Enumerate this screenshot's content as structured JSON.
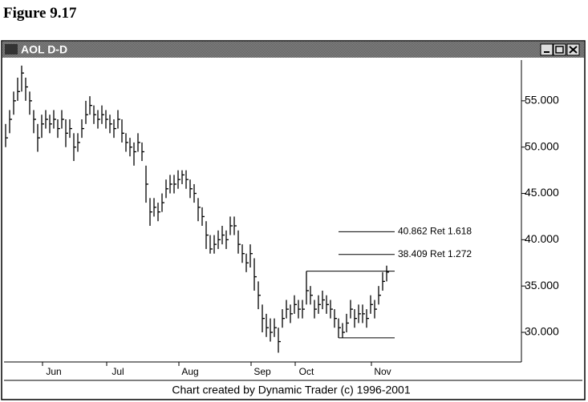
{
  "chart_data": {
    "type": "ohlc",
    "figure_label": "Figure 9.17",
    "title": "AOL D-D",
    "credit": "Chart created by Dynamic Trader (c) 1996-2001",
    "color": "#000000",
    "high": [
      52.5,
      54,
      56,
      57.5,
      58.8,
      57.5,
      56,
      54,
      52.5,
      53.5,
      54,
      53.5,
      54,
      53,
      54,
      53,
      53,
      51.5,
      51.5,
      53,
      55,
      55.5,
      54.5,
      54,
      54.5,
      54,
      53.5,
      53,
      54,
      53,
      51.5,
      51,
      50.5,
      51.5,
      50.5,
      48,
      44.5,
      44.5,
      44,
      45,
      46.5,
      47,
      47,
      47.5,
      47.5,
      47.5,
      46.5,
      46,
      44.5,
      43.5,
      42,
      40.5,
      40.5,
      41,
      41.5,
      41,
      42.5,
      42.5,
      41,
      39.5,
      38.5,
      39.5,
      38,
      35.5,
      33,
      32,
      31.5,
      31.5,
      30.5,
      32.5,
      33.5,
      33,
      34,
      33.5,
      33.5,
      36.6,
      35,
      33.5,
      34,
      34.5,
      34,
      33.5,
      32.5,
      31.5,
      31,
      32,
      33.5,
      32.5,
      33,
      33,
      32.5,
      34,
      33.5,
      35,
      36.5,
      37.2
    ],
    "low": [
      50,
      51.5,
      53.5,
      55,
      56,
      55,
      53.5,
      51.5,
      49.5,
      51,
      52,
      51.5,
      52,
      51,
      52,
      50,
      51,
      48.5,
      49.5,
      51,
      52.5,
      53.5,
      52.5,
      52,
      52.5,
      52,
      51.5,
      51,
      52,
      50.5,
      49.5,
      49,
      48,
      49.5,
      48.5,
      44,
      41.5,
      42.5,
      42,
      43,
      44.5,
      45,
      45,
      45.5,
      46,
      45.5,
      44.5,
      44,
      42,
      41.5,
      39,
      38.5,
      38.5,
      39,
      39.5,
      39,
      40.5,
      40.5,
      38.5,
      37.5,
      36.5,
      37,
      34.5,
      32.5,
      30,
      29.5,
      29,
      29.5,
      27.8,
      30.5,
      31.5,
      31,
      32,
      31.5,
      31.5,
      33,
      33,
      31.5,
      32,
      32.5,
      32,
      31.5,
      30.5,
      29.4,
      29.4,
      30,
      31.5,
      30.5,
      31,
      31,
      30.5,
      32,
      31.5,
      33,
      34.5,
      35.5
    ],
    "close": [
      51,
      53,
      55,
      56,
      58,
      56.5,
      55,
      53,
      51,
      52.5,
      53,
      52.5,
      53,
      52,
      53,
      51.5,
      52,
      50,
      50.5,
      52,
      53.5,
      54.5,
      53.5,
      53,
      53.5,
      53,
      52.5,
      52,
      53,
      51.5,
      50.5,
      50,
      49.5,
      50.5,
      49.5,
      46,
      43,
      43.5,
      43,
      44,
      45.5,
      46,
      46,
      46.5,
      47,
      46.5,
      45.5,
      45,
      43.5,
      42.5,
      40.5,
      39,
      39.5,
      40,
      40.5,
      40,
      41.5,
      41.5,
      39.5,
      38.5,
      37.5,
      38.5,
      36,
      34,
      31.5,
      30.5,
      30,
      30.5,
      29,
      31.5,
      32.5,
      32,
      33,
      32.5,
      32.5,
      34.5,
      34,
      32.5,
      33,
      33.5,
      33,
      32.5,
      31.5,
      30.5,
      30,
      31,
      32.5,
      31.5,
      32,
      32,
      31.5,
      33,
      32.5,
      34,
      35.5,
      36.5
    ],
    "xlim": [
      -0.4,
      128.6
    ],
    "xticks": [
      {
        "value": 12,
        "label": "Jun"
      },
      {
        "value": 28,
        "label": "Jul"
      },
      {
        "value": 46,
        "label": "Aug"
      },
      {
        "value": 64,
        "label": "Sep"
      },
      {
        "value": 75,
        "label": "Oct"
      },
      {
        "value": 94,
        "label": "Nov"
      }
    ],
    "ylim": [
      26.8,
      59.4
    ],
    "yticks": [
      {
        "value": 30,
        "label": "30.000"
      },
      {
        "value": 35,
        "label": "35.000"
      },
      {
        "value": 40,
        "label": "40.000"
      },
      {
        "value": 45,
        "label": "45.000"
      },
      {
        "value": 50,
        "label": "50.000"
      },
      {
        "value": 55,
        "label": "55.000"
      }
    ],
    "levels": [
      {
        "value": 40.862,
        "label": "40.862 Ret 1.618",
        "from": 83,
        "to": 97
      },
      {
        "value": 38.409,
        "label": "38.409 Ret 1.272",
        "from": 83,
        "to": 97
      },
      {
        "value": 36.6,
        "from": 75,
        "to": 97
      },
      {
        "value": 29.4,
        "from": 83,
        "to": 97
      }
    ]
  }
}
